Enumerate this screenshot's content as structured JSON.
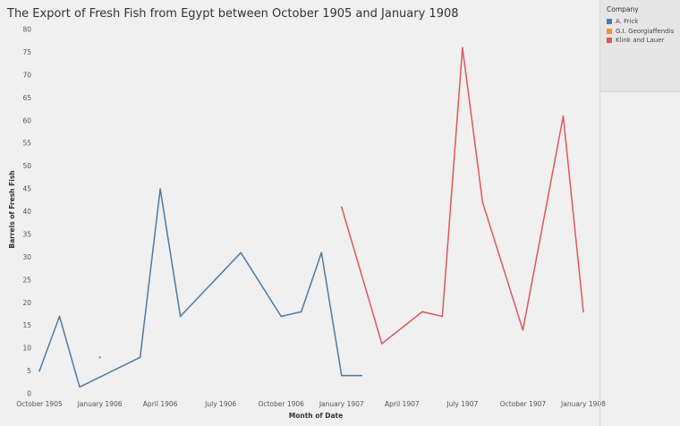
{
  "legend": {
    "title": "Company",
    "items": [
      {
        "label": "A. Frick",
        "color": "#4e79a7"
      },
      {
        "label": "G.I. Georgiaffendis",
        "color": "#f28e2b"
      },
      {
        "label": "Klink and Lauer",
        "color": "#e15759"
      }
    ]
  },
  "chart_data": {
    "type": "line",
    "title": "The Export of Fresh Fish from Egypt between October 1905 and January 1908",
    "xlabel": "Month of Date",
    "ylabel": "Barrels of Fresh Fish",
    "xlim": [
      "1905-10",
      "1908-01"
    ],
    "ylim": [
      0,
      80
    ],
    "y_ticks": [
      0,
      5,
      10,
      15,
      20,
      25,
      30,
      35,
      40,
      45,
      50,
      55,
      60,
      65,
      70,
      75,
      80
    ],
    "x_ticks": [
      {
        "date": "1905-10",
        "label": "October 1905"
      },
      {
        "date": "1906-01",
        "label": "January 1906"
      },
      {
        "date": "1906-04",
        "label": "April 1906"
      },
      {
        "date": "1906-07",
        "label": "July 1906"
      },
      {
        "date": "1906-10",
        "label": "October 1906"
      },
      {
        "date": "1907-01",
        "label": "January 1907"
      },
      {
        "date": "1907-04",
        "label": "April 1907"
      },
      {
        "date": "1907-07",
        "label": "July 1907"
      },
      {
        "date": "1907-10",
        "label": "October 1907"
      },
      {
        "date": "1908-01",
        "label": "January 1908"
      }
    ],
    "grid": false,
    "legend_position": "right",
    "series": [
      {
        "name": "A. Frick",
        "color": "#4e79a7",
        "points": [
          {
            "x": "1905-10",
            "y": 5
          },
          {
            "x": "1905-11",
            "y": 17
          },
          {
            "x": "1905-12",
            "y": 1.5
          },
          {
            "x": "1906-03",
            "y": 8
          },
          {
            "x": "1906-04",
            "y": 45
          },
          {
            "x": "1906-05",
            "y": 17
          },
          {
            "x": "1906-08",
            "y": 31
          },
          {
            "x": "1906-10",
            "y": 17
          },
          {
            "x": "1906-11",
            "y": 18
          },
          {
            "x": "1906-12",
            "y": 31
          },
          {
            "x": "1907-01",
            "y": 4
          },
          {
            "x": "1907-02",
            "y": 4
          }
        ]
      },
      {
        "name": "G.I. Georgiaffendis",
        "color": "#f28e2b",
        "points": [
          {
            "x": "1906-01",
            "y": 8
          }
        ]
      },
      {
        "name": "Klink and Lauer",
        "color": "#e15759",
        "points": [
          {
            "x": "1907-01",
            "y": 41
          },
          {
            "x": "1907-03",
            "y": 11
          },
          {
            "x": "1907-05",
            "y": 18
          },
          {
            "x": "1907-06",
            "y": 17
          },
          {
            "x": "1907-07",
            "y": 76
          },
          {
            "x": "1907-08",
            "y": 42
          },
          {
            "x": "1907-10",
            "y": 14
          },
          {
            "x": "1907-12",
            "y": 61
          },
          {
            "x": "1908-01",
            "y": 18
          }
        ]
      }
    ]
  }
}
